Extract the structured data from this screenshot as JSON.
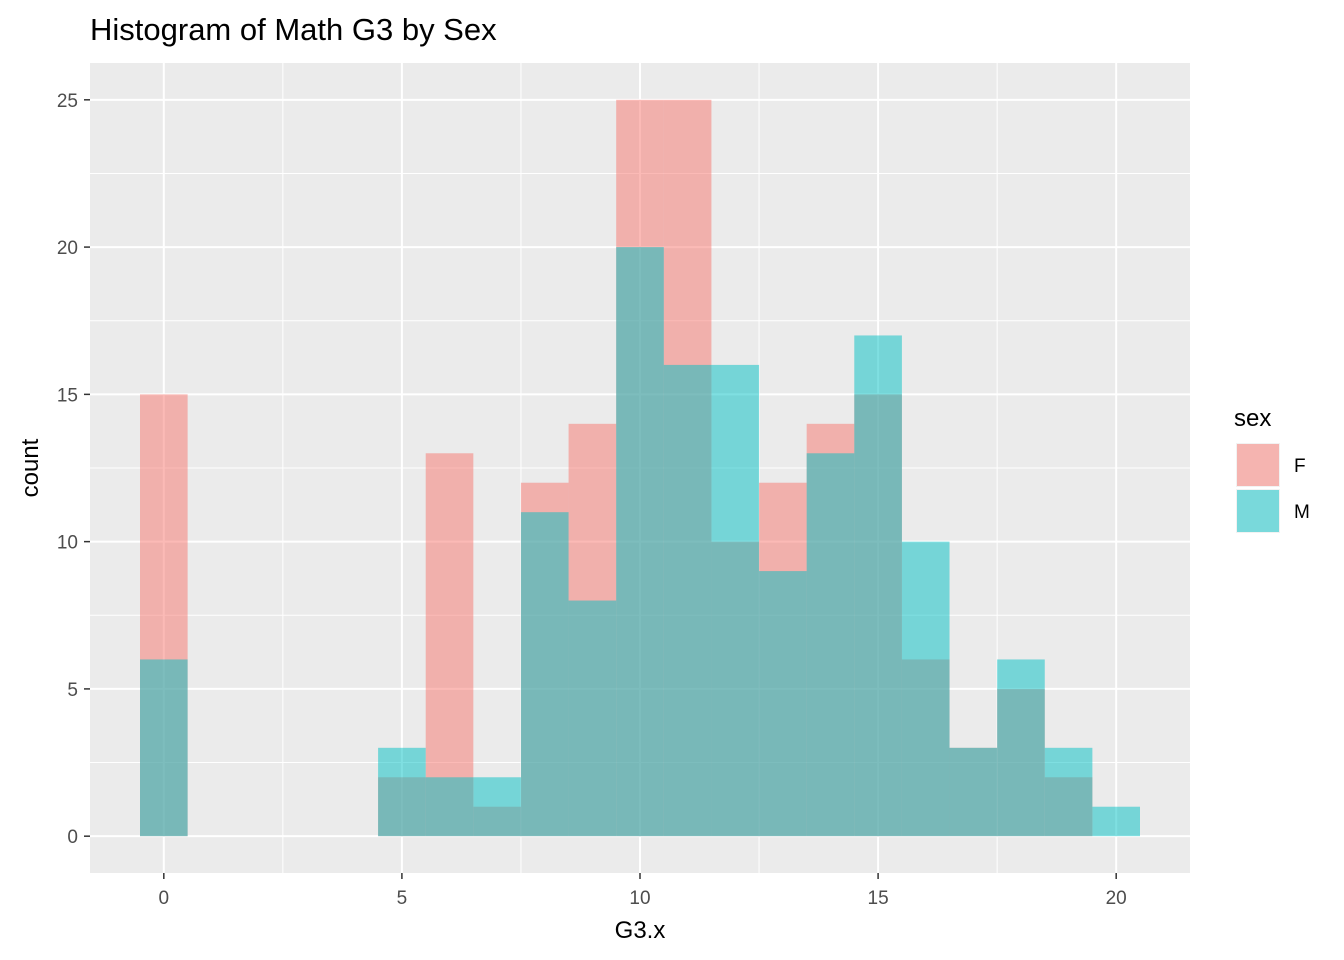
{
  "chart_data": {
    "type": "bar",
    "subtype": "histogram-overlay",
    "title": "Histogram of Math G3 by Sex",
    "xlabel": "G3.x",
    "ylabel": "count",
    "x_ticks": [
      0,
      5,
      10,
      15,
      20
    ],
    "y_ticks": [
      0,
      5,
      10,
      15,
      20,
      25
    ],
    "xlim": [
      -1.55,
      21.55
    ],
    "ylim": [
      -1.25,
      26.25
    ],
    "bin_width": 1,
    "bins": [
      0,
      1,
      2,
      3,
      4,
      5,
      6,
      7,
      8,
      9,
      10,
      11,
      12,
      13,
      14,
      15,
      16,
      17,
      18,
      19,
      20
    ],
    "grid": true,
    "legend": {
      "title": "sex",
      "position": "right"
    },
    "colors": {
      "F": "#F8766D",
      "M": "#00BFC4"
    },
    "series": [
      {
        "name": "F",
        "values": [
          15,
          0,
          0,
          0,
          0,
          2,
          13,
          1,
          12,
          14,
          25,
          25,
          10,
          12,
          14,
          15,
          6,
          3,
          5,
          2,
          0
        ]
      },
      {
        "name": "M",
        "values": [
          6,
          0,
          0,
          0,
          0,
          3,
          2,
          2,
          11,
          8,
          20,
          16,
          16,
          9,
          13,
          17,
          10,
          3,
          6,
          3,
          1
        ]
      }
    ]
  }
}
